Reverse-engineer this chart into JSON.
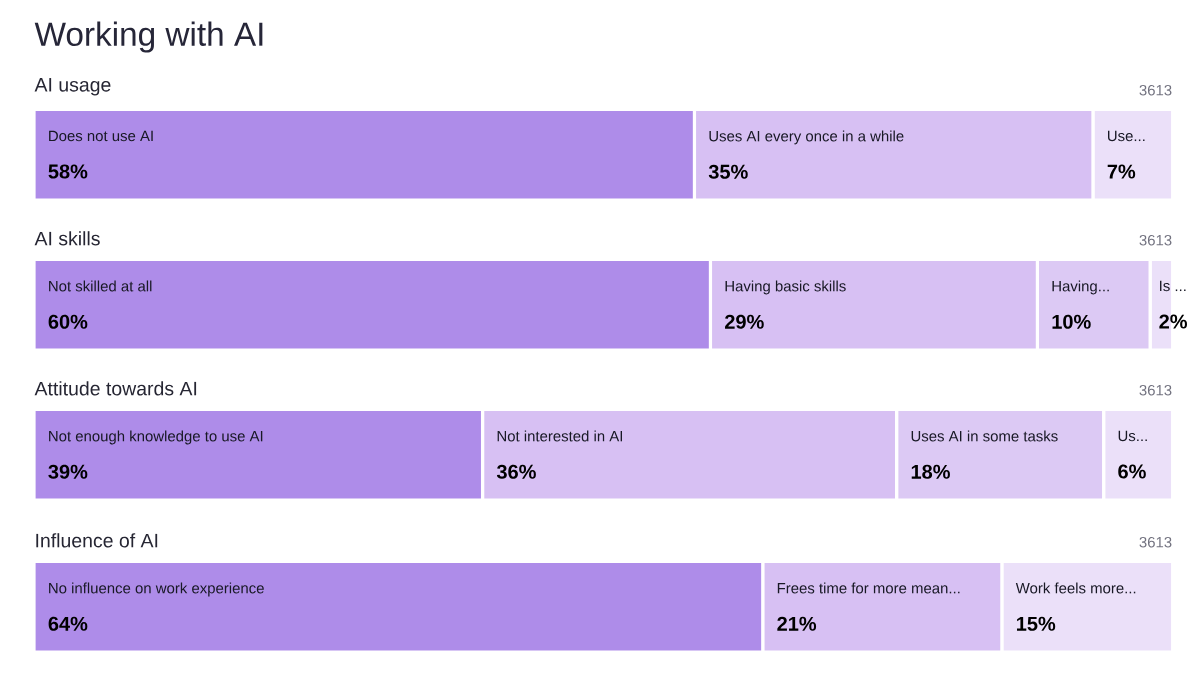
{
  "chart_data": [
    {
      "type": "bar",
      "title": "Working with AI",
      "subtitle": "AI usage",
      "orientation": "horizontal",
      "stacked": true,
      "legend": false,
      "tick_labels": false,
      "categories": [
        null
      ],
      "annotations": [
        "3613"
      ],
      "series": [
        {
          "name": "Does not use AI",
          "color": "#ae8ce9",
          "values": [
            58
          ],
          "value_labels": [
            "58%"
          ]
        },
        {
          "name": "Uses AI every once in a while",
          "color": "#d7c0f3",
          "values": [
            35
          ],
          "value_labels": [
            "35%"
          ]
        },
        {
          "name": "Use...",
          "color": "#ebe0f9",
          "values": [
            7
          ],
          "value_labels": [
            "7%"
          ]
        }
      ]
    },
    {
      "type": "bar",
      "subtitle": "AI skills",
      "orientation": "horizontal",
      "stacked": true,
      "legend": false,
      "tick_labels": false,
      "categories": [
        null
      ],
      "annotations": [
        "3613"
      ],
      "series": [
        {
          "name": "Not skilled at all",
          "color": "#ae8ce9",
          "values": [
            60
          ],
          "value_labels": [
            "60%"
          ]
        },
        {
          "name": "Having basic skills",
          "color": "#d7c0f3",
          "values": [
            29
          ],
          "value_labels": [
            "29%"
          ]
        },
        {
          "name": "Having...",
          "color": "#dcc9f4",
          "values": [
            10
          ],
          "value_labels": [
            "10%"
          ]
        },
        {
          "name": "Is ...",
          "color": "#ebe0f9",
          "values": [
            2
          ],
          "value_labels": [
            "2%"
          ]
        }
      ]
    },
    {
      "type": "bar",
      "subtitle": "Attitude towards AI",
      "orientation": "horizontal",
      "stacked": true,
      "legend": false,
      "tick_labels": false,
      "categories": [
        null
      ],
      "annotations": [
        "3613"
      ],
      "series": [
        {
          "name": "Not enough knowledge to use AI",
          "color": "#ae8ce9",
          "values": [
            39
          ],
          "value_labels": [
            "39%"
          ]
        },
        {
          "name": "Not interested in AI",
          "color": "#d7c0f3",
          "values": [
            36
          ],
          "value_labels": [
            "36%"
          ]
        },
        {
          "name": "Uses AI in some tasks",
          "color": "#dcc9f4",
          "values": [
            18
          ],
          "value_labels": [
            "18%"
          ]
        },
        {
          "name": "Us...",
          "color": "#ebe0f9",
          "values": [
            6
          ],
          "value_labels": [
            "6%"
          ]
        }
      ]
    },
    {
      "type": "bar",
      "subtitle": "Influence of AI",
      "orientation": "horizontal",
      "stacked": true,
      "legend": false,
      "tick_labels": false,
      "categories": [
        null
      ],
      "annotations": [
        "3613"
      ],
      "series": [
        {
          "name": "No influence on work experience",
          "color": "#ae8ce9",
          "values": [
            64
          ],
          "value_labels": [
            "64%"
          ]
        },
        {
          "name": "Frees time for more mean...",
          "color": "#d7c0f3",
          "values": [
            21
          ],
          "value_labels": [
            "21%"
          ]
        },
        {
          "name": "Work feels more...",
          "color": "#ebe0f9",
          "values": [
            15
          ],
          "value_labels": [
            "15%"
          ]
        }
      ]
    }
  ]
}
